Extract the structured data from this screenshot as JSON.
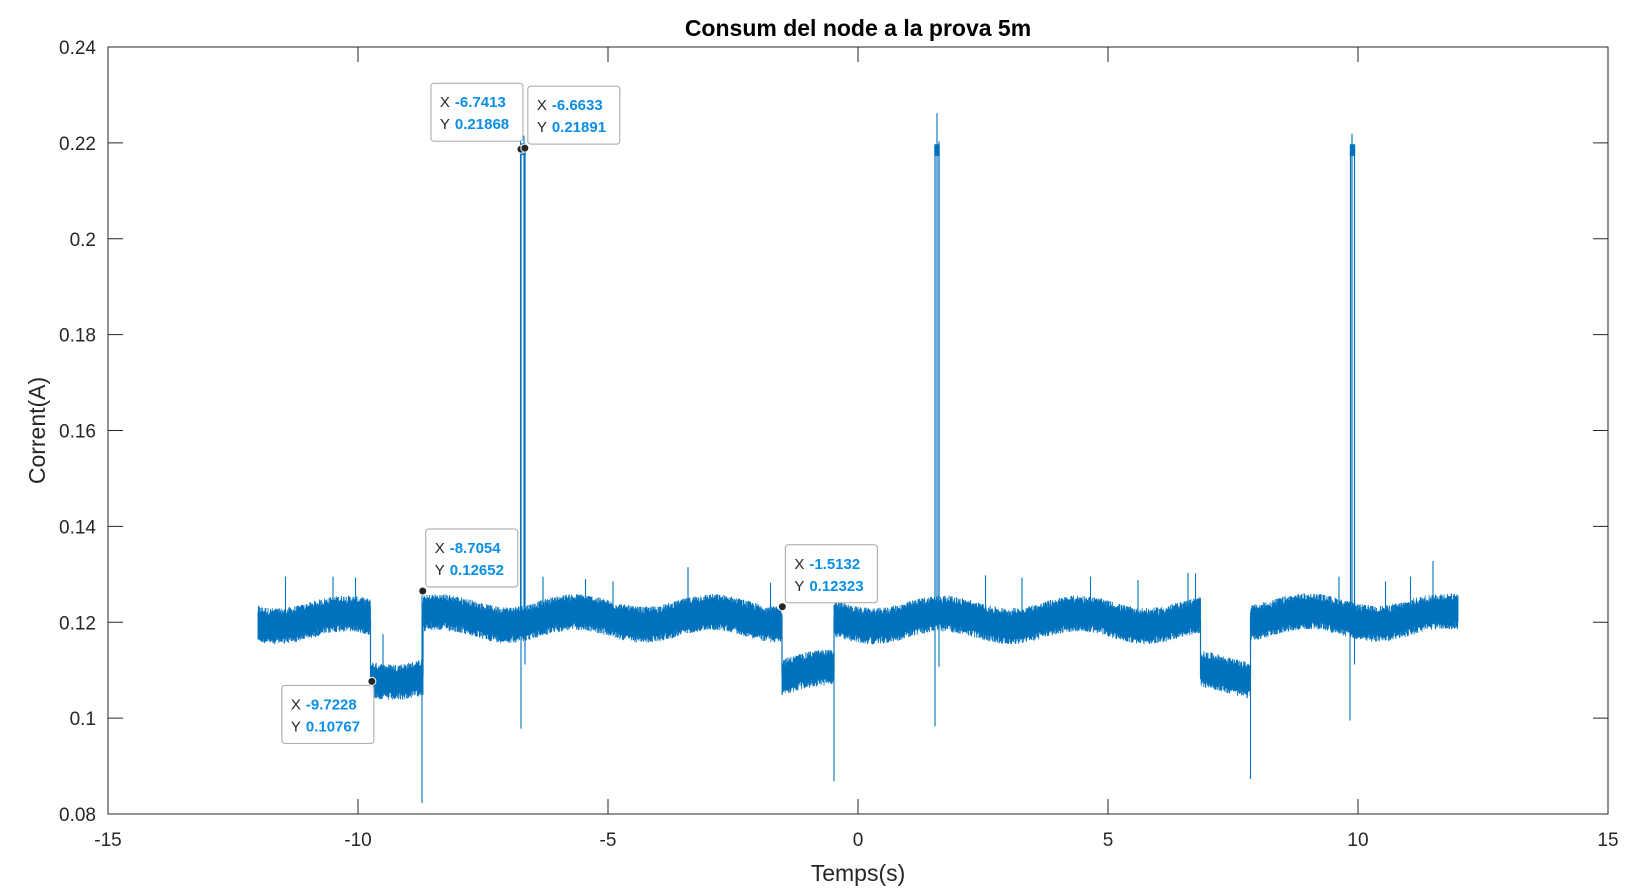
{
  "chart_data": {
    "type": "line",
    "title": "Consum del node a la prova 5m",
    "xlabel": "Temps(s)",
    "ylabel": "Corrent(A)",
    "xlim": [
      -15,
      15
    ],
    "ylim": [
      0.08,
      0.24
    ],
    "xticks": [
      -15,
      -10,
      -5,
      0,
      5,
      10,
      15
    ],
    "xtick_labels": [
      "-15",
      "-10",
      "-5",
      "0",
      "5",
      "10",
      "15"
    ],
    "yticks": [
      0.08,
      0.1,
      0.12,
      0.14,
      0.16,
      0.18,
      0.2,
      0.22,
      0.24
    ],
    "ytick_labels": [
      "0.08",
      "0.1",
      "0.12",
      "0.14",
      "0.16",
      "0.18",
      "0.2",
      "0.22",
      "0.24"
    ],
    "grid": false,
    "box": true,
    "series_color": "#0072BD",
    "base_levels": [
      {
        "x_start": -12.0,
        "x_end": -9.75,
        "y": 0.1205
      },
      {
        "x_start": -9.75,
        "x_end": -8.7,
        "y": 0.1088
      },
      {
        "x_start": -8.7,
        "x_end": -1.52,
        "y": 0.1208
      },
      {
        "x_start": -1.52,
        "x_end": -0.48,
        "y": 0.1092
      },
      {
        "x_start": -0.48,
        "x_end": 6.85,
        "y": 0.1205
      },
      {
        "x_start": 6.85,
        "x_end": 7.85,
        "y": 0.109
      },
      {
        "x_start": 7.85,
        "x_end": 12.0,
        "y": 0.121
      }
    ],
    "noise_amplitude": 0.0038,
    "plateaus": [
      {
        "x_start": -6.74,
        "x_end": -6.66,
        "y": 0.2187
      },
      {
        "x_start": 1.54,
        "x_end": 1.62,
        "y": 0.2185
      },
      {
        "x_start": 9.85,
        "x_end": 9.93,
        "y": 0.2185
      }
    ],
    "spikes_up": [
      {
        "x": -11.45,
        "y": 0.1295
      },
      {
        "x": -10.5,
        "y": 0.1295
      },
      {
        "x": -10.05,
        "y": 0.1293
      },
      {
        "x": -9.5,
        "y": 0.1175
      },
      {
        "x": -8.72,
        "y": 0.1265
      },
      {
        "x": -6.75,
        "y": 0.2206
      },
      {
        "x": -6.68,
        "y": 0.2215
      },
      {
        "x": -6.3,
        "y": 0.1295
      },
      {
        "x": -5.45,
        "y": 0.129
      },
      {
        "x": -4.9,
        "y": 0.1285
      },
      {
        "x": -3.4,
        "y": 0.1315
      },
      {
        "x": -1.75,
        "y": 0.1282
      },
      {
        "x": 1.58,
        "y": 0.2262
      },
      {
        "x": 1.62,
        "y": 0.2203
      },
      {
        "x": 2.55,
        "y": 0.1298
      },
      {
        "x": 3.28,
        "y": 0.1293
      },
      {
        "x": 4.65,
        "y": 0.1295
      },
      {
        "x": 5.6,
        "y": 0.1288
      },
      {
        "x": 6.6,
        "y": 0.1303
      },
      {
        "x": 6.75,
        "y": 0.1302
      },
      {
        "x": 9.62,
        "y": 0.1295
      },
      {
        "x": 9.88,
        "y": 0.2219
      },
      {
        "x": 10.55,
        "y": 0.1285
      },
      {
        "x": 11.05,
        "y": 0.1295
      },
      {
        "x": 11.5,
        "y": 0.1328
      }
    ],
    "spikes_down": [
      {
        "x": -8.72,
        "y": 0.0823
      },
      {
        "x": -6.74,
        "y": 0.0978
      },
      {
        "x": -6.66,
        "y": 0.1112
      },
      {
        "x": -0.48,
        "y": 0.0868
      },
      {
        "x": 1.54,
        "y": 0.0983
      },
      {
        "x": 1.62,
        "y": 0.1107
      },
      {
        "x": 7.85,
        "y": 0.0873
      },
      {
        "x": 9.84,
        "y": 0.0995
      },
      {
        "x": 9.93,
        "y": 0.1112
      }
    ],
    "datatips": [
      {
        "x": "-6.7413",
        "y": "0.21868",
        "box": "above-left"
      },
      {
        "x": "-6.6633",
        "y": "0.21891",
        "box": "above-right"
      },
      {
        "x": "-8.7054",
        "y": "0.12652",
        "box": "above-right"
      },
      {
        "x": "-1.5132",
        "y": "0.12323",
        "box": "above-right"
      },
      {
        "x": "-9.7228",
        "y": "0.10767",
        "box": "below-left"
      }
    ]
  },
  "datatip_labels": {
    "x": "X",
    "y": "Y"
  }
}
